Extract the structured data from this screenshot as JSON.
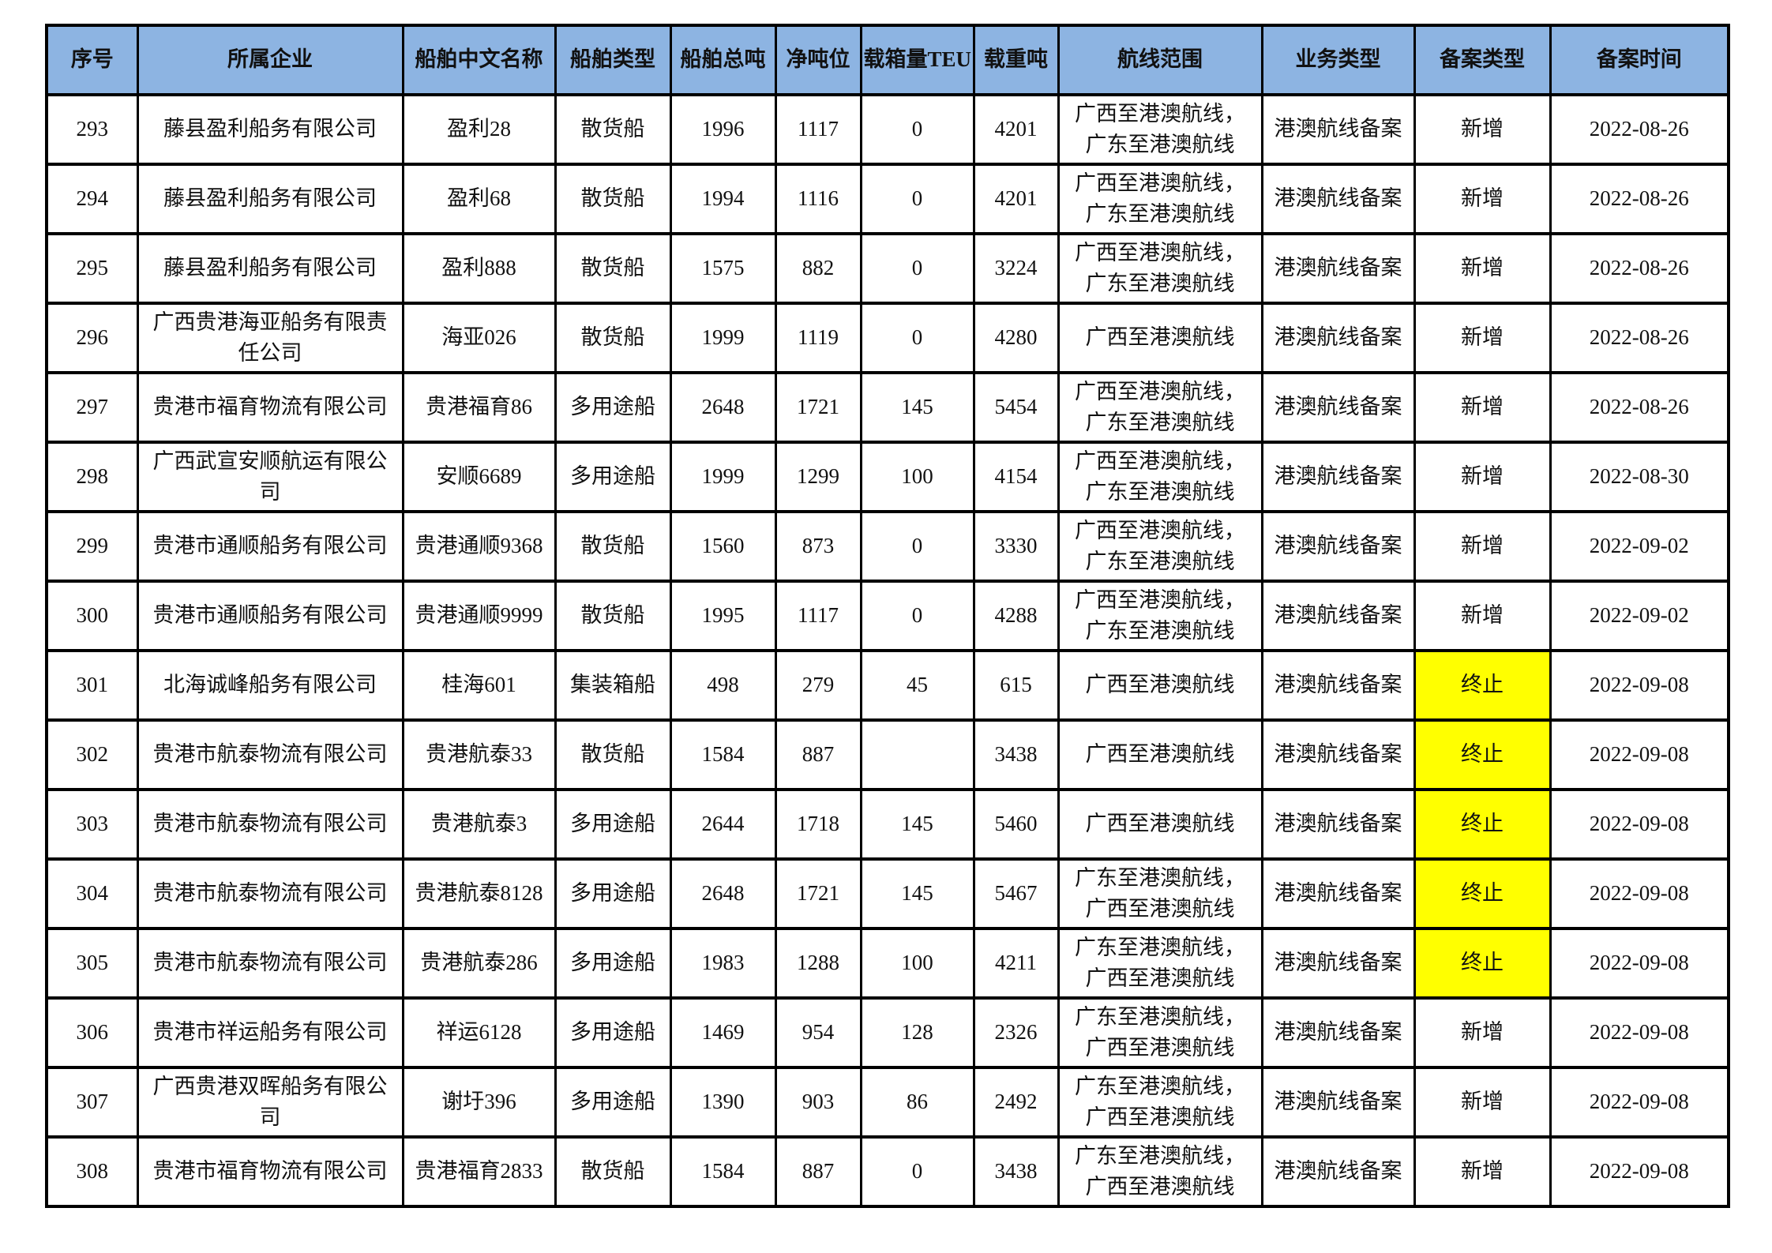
{
  "colors": {
    "header_bg": "#8db4e2",
    "highlight_bg": "#ffff00",
    "border": "#000000",
    "text": "#111111"
  },
  "table": {
    "column_keys": [
      "seq",
      "company",
      "ship-name",
      "ship-type",
      "gross-tonnage",
      "net-tonnage",
      "teu",
      "dwt",
      "route",
      "business-type",
      "filing-type",
      "filing-date"
    ],
    "columns": [
      "序号",
      "所属企业",
      "船舶中文名称",
      "船舶类型",
      "船舶总吨",
      "净吨位",
      "载箱量TEU",
      "载重吨",
      "航线范围",
      "业务类型",
      "备案类型",
      "备案时间"
    ],
    "rows": [
      {
        "cells": [
          "293",
          "藤县盈利船务有限公司",
          "盈利28",
          "散货船",
          "1996",
          "1117",
          "0",
          "4201",
          "广西至港澳航线，\n广东至港澳航线",
          "港澳航线备案",
          "新增",
          "2022-08-26"
        ],
        "filing_highlight": false
      },
      {
        "cells": [
          "294",
          "藤县盈利船务有限公司",
          "盈利68",
          "散货船",
          "1994",
          "1116",
          "0",
          "4201",
          "广西至港澳航线，\n广东至港澳航线",
          "港澳航线备案",
          "新增",
          "2022-08-26"
        ],
        "filing_highlight": false
      },
      {
        "cells": [
          "295",
          "藤县盈利船务有限公司",
          "盈利888",
          "散货船",
          "1575",
          "882",
          "0",
          "3224",
          "广西至港澳航线，\n广东至港澳航线",
          "港澳航线备案",
          "新增",
          "2022-08-26"
        ],
        "filing_highlight": false
      },
      {
        "cells": [
          "296",
          "广西贵港海亚船务有限责\n任公司",
          "海亚026",
          "散货船",
          "1999",
          "1119",
          "0",
          "4280",
          "广西至港澳航线",
          "港澳航线备案",
          "新增",
          "2022-08-26"
        ],
        "filing_highlight": false
      },
      {
        "cells": [
          "297",
          "贵港市福育物流有限公司",
          "贵港福育86",
          "多用途船",
          "2648",
          "1721",
          "145",
          "5454",
          "广西至港澳航线，\n广东至港澳航线",
          "港澳航线备案",
          "新增",
          "2022-08-26"
        ],
        "filing_highlight": false
      },
      {
        "cells": [
          "298",
          "广西武宣安顺航运有限公\n司",
          "安顺6689",
          "多用途船",
          "1999",
          "1299",
          "100",
          "4154",
          "广西至港澳航线，\n广东至港澳航线",
          "港澳航线备案",
          "新增",
          "2022-08-30"
        ],
        "filing_highlight": false
      },
      {
        "cells": [
          "299",
          "贵港市通顺船务有限公司",
          "贵港通顺9368",
          "散货船",
          "1560",
          "873",
          "0",
          "3330",
          "广西至港澳航线，\n广东至港澳航线",
          "港澳航线备案",
          "新增",
          "2022-09-02"
        ],
        "filing_highlight": false
      },
      {
        "cells": [
          "300",
          "贵港市通顺船务有限公司",
          "贵港通顺9999",
          "散货船",
          "1995",
          "1117",
          "0",
          "4288",
          "广西至港澳航线，\n广东至港澳航线",
          "港澳航线备案",
          "新增",
          "2022-09-02"
        ],
        "filing_highlight": false
      },
      {
        "cells": [
          "301",
          "北海诚峰船务有限公司",
          "桂海601",
          "集装箱船",
          "498",
          "279",
          "45",
          "615",
          "广西至港澳航线",
          "港澳航线备案",
          "终止",
          "2022-09-08"
        ],
        "filing_highlight": true
      },
      {
        "cells": [
          "302",
          "贵港市航泰物流有限公司",
          "贵港航泰33",
          "散货船",
          "1584",
          "887",
          "",
          "3438",
          "广西至港澳航线",
          "港澳航线备案",
          "终止",
          "2022-09-08"
        ],
        "filing_highlight": true
      },
      {
        "cells": [
          "303",
          "贵港市航泰物流有限公司",
          "贵港航泰3",
          "多用途船",
          "2644",
          "1718",
          "145",
          "5460",
          "广西至港澳航线",
          "港澳航线备案",
          "终止",
          "2022-09-08"
        ],
        "filing_highlight": true
      },
      {
        "cells": [
          "304",
          "贵港市航泰物流有限公司",
          "贵港航泰8128",
          "多用途船",
          "2648",
          "1721",
          "145",
          "5467",
          "广东至港澳航线，\n广西至港澳航线",
          "港澳航线备案",
          "终止",
          "2022-09-08"
        ],
        "filing_highlight": true
      },
      {
        "cells": [
          "305",
          "贵港市航泰物流有限公司",
          "贵港航泰286",
          "多用途船",
          "1983",
          "1288",
          "100",
          "4211",
          "广东至港澳航线，\n广西至港澳航线",
          "港澳航线备案",
          "终止",
          "2022-09-08"
        ],
        "filing_highlight": true
      },
      {
        "cells": [
          "306",
          "贵港市祥运船务有限公司",
          "祥运6128",
          "多用途船",
          "1469",
          "954",
          "128",
          "2326",
          "广东至港澳航线，\n广西至港澳航线",
          "港澳航线备案",
          "新增",
          "2022-09-08"
        ],
        "filing_highlight": false
      },
      {
        "cells": [
          "307",
          "广西贵港双晖船务有限公\n司",
          "谢圩396",
          "多用途船",
          "1390",
          "903",
          "86",
          "2492",
          "广东至港澳航线，\n广西至港澳航线",
          "港澳航线备案",
          "新增",
          "2022-09-08"
        ],
        "filing_highlight": false
      },
      {
        "cells": [
          "308",
          "贵港市福育物流有限公司",
          "贵港福育2833",
          "散货船",
          "1584",
          "887",
          "0",
          "3438",
          "广东至港澳航线，\n广西至港澳航线",
          "港澳航线备案",
          "新增",
          "2022-09-08"
        ],
        "filing_highlight": false
      }
    ]
  }
}
